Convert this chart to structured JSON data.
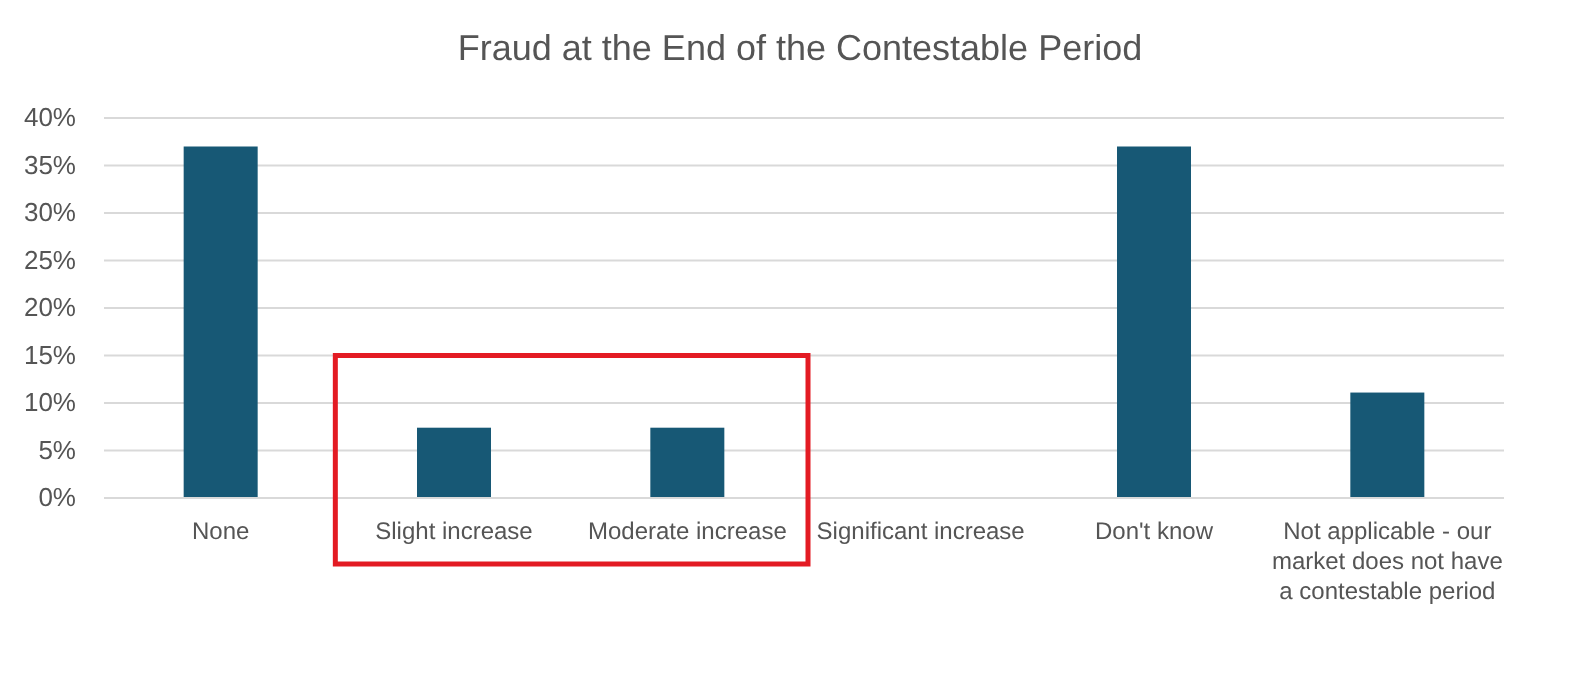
{
  "chart_data": {
    "type": "bar",
    "title": "Fraud at the End of the Contestable Period",
    "categories": [
      "None",
      "Slight increase",
      "Moderate increase",
      "Significant increase",
      "Don't know",
      "Not applicable - our market does not have a contestable period"
    ],
    "values": [
      37,
      7.4,
      7.4,
      0,
      37,
      11.1
    ],
    "color": "#175875",
    "ylim": [
      0,
      40
    ],
    "yticks": [
      {
        "value": 0,
        "label": "0%"
      },
      {
        "value": 5,
        "label": "5%"
      },
      {
        "value": 10,
        "label": "10%"
      },
      {
        "value": 15,
        "label": "15%"
      },
      {
        "value": 20,
        "label": "20%"
      },
      {
        "value": 25,
        "label": "25%"
      },
      {
        "value": 30,
        "label": "30%"
      },
      {
        "value": 35,
        "label": "35%"
      },
      {
        "value": 40,
        "label": "40%"
      }
    ],
    "grid": true
  }
}
